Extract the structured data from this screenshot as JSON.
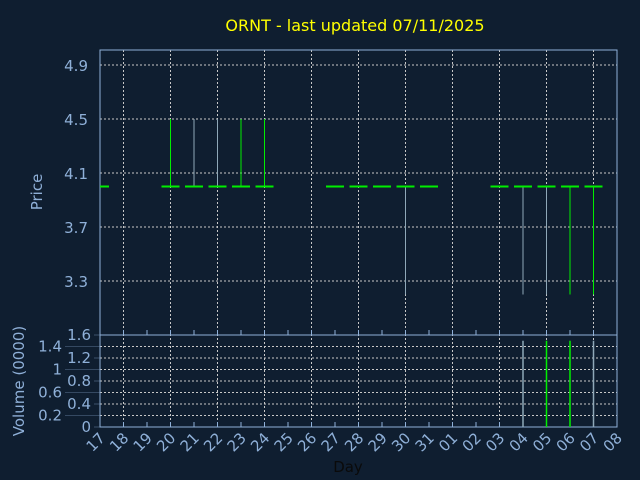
{
  "chart_data": {
    "type": "ohlc",
    "title": "ORNT - last updated 07/11/2025",
    "xlabel": "Day",
    "colors": {
      "background": "#0f1e30",
      "axis": "#8fb0d8",
      "title": "#ffff00",
      "up": "#00ee00",
      "neutral": "#8fa8b8",
      "grid": "#c8c8c8"
    },
    "x_ticks": [
      "17",
      "18",
      "19",
      "20",
      "21",
      "22",
      "23",
      "24",
      "25",
      "26",
      "27",
      "28",
      "29",
      "30",
      "31",
      "01",
      "02",
      "03",
      "04",
      "05",
      "06",
      "07",
      "08"
    ],
    "price_panel": {
      "ylabel": "Price",
      "ylim": [
        2.9,
        5.0
      ],
      "y_ticks": [
        "4.9",
        "4.5",
        "4.1",
        "3.7",
        "3.3"
      ],
      "y_tick_values": [
        4.9,
        4.5,
        4.1,
        3.7,
        3.3
      ],
      "candles": [
        {
          "day": "17",
          "open": 4.0,
          "high": 4.0,
          "low": 4.0,
          "close": 4.0,
          "color": "#00ee00"
        },
        {
          "day": "20",
          "open": 4.0,
          "high": 4.5,
          "low": 4.0,
          "close": 4.0,
          "color": "#00ee00"
        },
        {
          "day": "21",
          "open": 4.0,
          "high": 4.5,
          "low": 4.0,
          "close": 4.0,
          "color": "#8fa8b8"
        },
        {
          "day": "22",
          "open": 4.0,
          "high": 4.5,
          "low": 4.0,
          "close": 4.0,
          "color": "#8fa8b8"
        },
        {
          "day": "23",
          "open": 4.0,
          "high": 4.5,
          "low": 4.0,
          "close": 4.0,
          "color": "#00ee00"
        },
        {
          "day": "24",
          "open": 4.0,
          "high": 4.5,
          "low": 4.0,
          "close": 4.0,
          "color": "#00ee00"
        },
        {
          "day": "27",
          "open": 4.0,
          "high": 4.0,
          "low": 4.0,
          "close": 4.0,
          "color": "#00ee00"
        },
        {
          "day": "28",
          "open": 4.0,
          "high": 4.0,
          "low": 4.0,
          "close": 4.0,
          "color": "#00ee00"
        },
        {
          "day": "29",
          "open": 4.0,
          "high": 4.0,
          "low": 4.0,
          "close": 4.0,
          "color": "#00ee00"
        },
        {
          "day": "30",
          "open": 4.0,
          "high": 4.0,
          "low": 3.2,
          "close": 4.0,
          "color": "#8fa8b8"
        },
        {
          "day": "31",
          "open": 4.0,
          "high": 4.0,
          "low": 4.0,
          "close": 4.0,
          "color": "#00ee00"
        },
        {
          "day": "03",
          "open": 4.0,
          "high": 4.0,
          "low": 4.0,
          "close": 4.0,
          "color": "#00ee00"
        },
        {
          "day": "04",
          "open": 4.0,
          "high": 4.0,
          "low": 3.2,
          "close": 4.0,
          "color": "#8fa8b8"
        },
        {
          "day": "05",
          "open": 4.0,
          "high": 4.0,
          "low": 3.2,
          "close": 4.0,
          "color": "#8fa8b8"
        },
        {
          "day": "06",
          "open": 4.0,
          "high": 4.0,
          "low": 3.2,
          "close": 4.0,
          "color": "#00ee00"
        },
        {
          "day": "07",
          "open": 4.0,
          "high": 4.0,
          "low": 3.2,
          "close": 4.0,
          "color": "#00ee00"
        }
      ]
    },
    "volume_panel": {
      "ylabel": "Volume (0000)",
      "ylim": [
        0,
        1.6
      ],
      "y_ticks": [
        "0",
        "0.2",
        "0.4",
        "0.6",
        "0.8",
        "1",
        "1.2",
        "1.4",
        "1.6"
      ],
      "y_tick_values": [
        0,
        0.2,
        0.4,
        0.6,
        0.8,
        1,
        1.2,
        1.4,
        1.6
      ],
      "bars": [
        {
          "day": "04",
          "value": 1.5,
          "color": "#8fa8b8"
        },
        {
          "day": "05",
          "value": 1.5,
          "color": "#00ee00"
        },
        {
          "day": "06",
          "value": 1.5,
          "color": "#00ee00"
        },
        {
          "day": "07",
          "value": 1.5,
          "color": "#8fa8b8"
        }
      ]
    }
  }
}
